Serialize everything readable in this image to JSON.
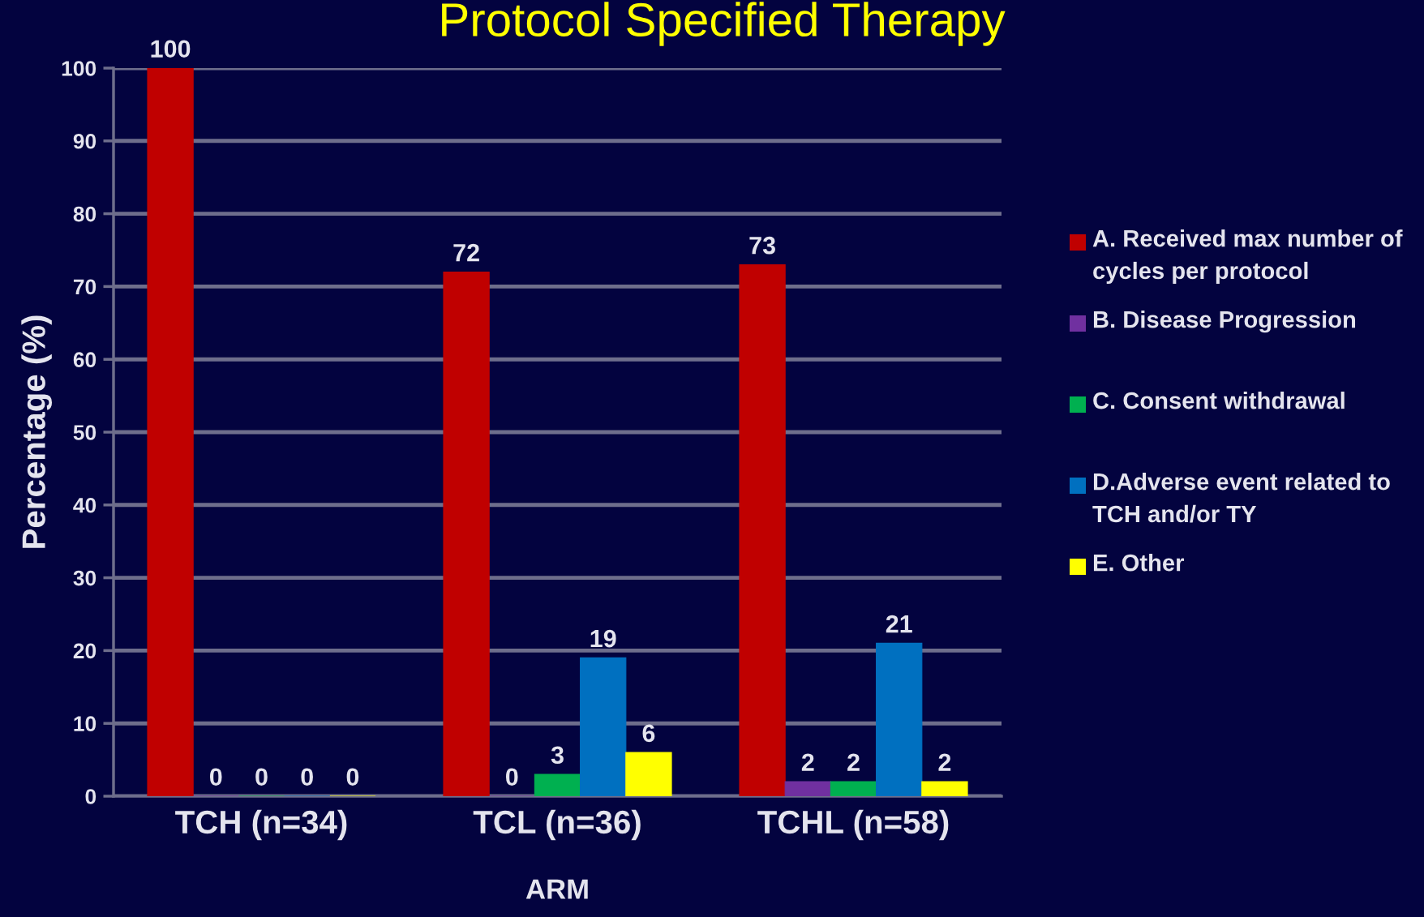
{
  "chart_data": {
    "type": "bar",
    "title": "Protocol Specified Therapy",
    "xlabel": "ARM",
    "ylabel": "Percentage (%)",
    "categories": [
      "TCH (n=34)",
      "TCL (n=36)",
      "TCHL (n=58)"
    ],
    "series": [
      {
        "name": "A. Received max number of cycles per protocol",
        "color": "#c00000",
        "values": [
          100,
          72,
          73
        ]
      },
      {
        "name": "B. Disease Progression",
        "color": "#7030a0",
        "values": [
          0,
          0,
          2
        ]
      },
      {
        "name": "C. Consent withdrawal",
        "color": "#00b050",
        "values": [
          0,
          3,
          2
        ]
      },
      {
        "name": "D.Adverse event related to TCH and/or TY",
        "color": "#0070c0",
        "values": [
          0,
          19,
          21
        ]
      },
      {
        "name": "E. Other",
        "color": "#ffff00",
        "values": [
          0,
          6,
          2
        ]
      }
    ],
    "ylim": [
      0,
      100
    ],
    "yticks": [
      0,
      10,
      20,
      30,
      40,
      50,
      60,
      70,
      80,
      90,
      100
    ],
    "grid": "y",
    "legend": "right",
    "data_labels": true
  }
}
